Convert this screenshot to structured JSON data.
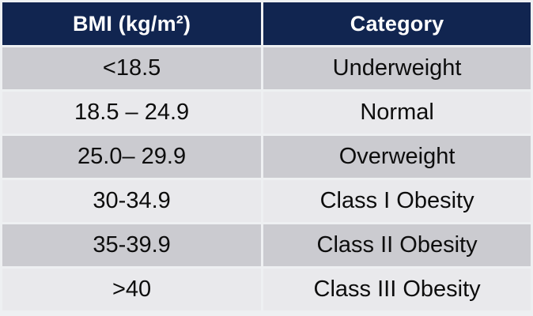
{
  "table": {
    "columns": {
      "bmi": "BMI (kg/m²)",
      "category": "Category"
    },
    "rows": [
      {
        "bmi": "<18.5",
        "category": "Underweight"
      },
      {
        "bmi": "18.5 – 24.9",
        "category": "Normal"
      },
      {
        "bmi": "25.0– 29.9",
        "category": "Overweight"
      },
      {
        "bmi": "30-34.9",
        "category": "Class I Obesity"
      },
      {
        "bmi": "35-39.9",
        "category": "Class II Obesity"
      },
      {
        "bmi": ">40",
        "category": "Class III Obesity"
      }
    ]
  },
  "colors": {
    "header-bg": "#112550",
    "header-text": "#ffffff",
    "row-dark": "#cbcbd0",
    "row-light": "#e9e9ec",
    "body-text": "#0d0d0d",
    "page-bg": "#eef0f2"
  },
  "chart_data": {
    "type": "table",
    "title": "",
    "columns": [
      "BMI (kg/m²)",
      "Category"
    ],
    "rows": [
      [
        "<18.5",
        "Underweight"
      ],
      [
        "18.5 – 24.9",
        "Normal"
      ],
      [
        "25.0– 29.9",
        "Overweight"
      ],
      [
        "30-34.9",
        "Class I Obesity"
      ],
      [
        "35-39.9",
        "Class II Obesity"
      ],
      [
        ">40",
        "Class III Obesity"
      ]
    ],
    "layout": {
      "header_style": "dark-navy, white bold text",
      "row_banding": "alternating gray starting dark",
      "cell_alignment": "center"
    }
  }
}
